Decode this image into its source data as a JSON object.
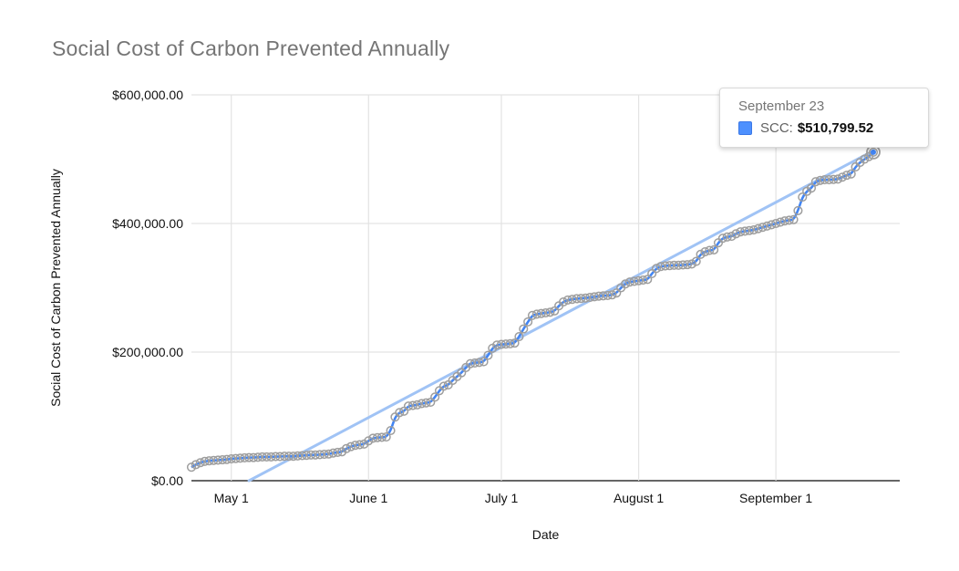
{
  "tooltip": {
    "date": "September 23",
    "series_label": "SCC:",
    "value": "$510,799.52",
    "swatch_color": "#4d90fe"
  },
  "colors": {
    "title": "#757575",
    "series_line": "#4285f4",
    "marker_stroke": "#9e9e9e",
    "trendline": "#a0c3f5",
    "gridline": "#e3e3e3",
    "axis_line": "#333333",
    "tick_text": "#111111"
  },
  "chart_data": {
    "type": "line",
    "title": "Social Cost of Carbon Prevented Annually",
    "xlabel": "Date",
    "ylabel": "Social Cost of Carbon Prevented Annually",
    "ylim": [
      0,
      600000
    ],
    "grid": true,
    "legend_position": "none",
    "start_date": "April 22",
    "end_date": "September 23",
    "y_ticks": [
      {
        "label": "$0.00",
        "value": 0
      },
      {
        "label": "$200,000.00",
        "value": 200000
      },
      {
        "label": "$400,000.00",
        "value": 400000
      },
      {
        "label": "$600,000.00",
        "value": 600000
      }
    ],
    "x_ticks": [
      {
        "label": "May 1",
        "day_index": 9
      },
      {
        "label": "June 1",
        "day_index": 40
      },
      {
        "label": "July 1",
        "day_index": 70
      },
      {
        "label": "August 1",
        "day_index": 101
      },
      {
        "label": "September 1",
        "day_index": 132
      }
    ],
    "series": [
      {
        "name": "SCC",
        "marker": "circle",
        "color": "#4285f4",
        "values": [
          21000,
          25000,
          28000,
          30000,
          31000,
          31500,
          32000,
          32500,
          33000,
          34000,
          34500,
          35000,
          35500,
          36000,
          36000,
          36500,
          37000,
          37000,
          37000,
          37500,
          37500,
          38000,
          38000,
          38000,
          38500,
          39000,
          39500,
          40000,
          40000,
          40500,
          41000,
          41500,
          43000,
          44000,
          45000,
          50000,
          53000,
          55000,
          56000,
          57000,
          62000,
          66000,
          67000,
          67500,
          68000,
          78000,
          99000,
          106000,
          108000,
          116000,
          117000,
          118000,
          120000,
          121000,
          122000,
          130000,
          140000,
          147000,
          149000,
          156000,
          162000,
          168000,
          176000,
          182000,
          183000,
          184000,
          185000,
          195000,
          206000,
          211000,
          212000,
          212500,
          213000,
          214000,
          224000,
          236000,
          247000,
          257000,
          259000,
          260000,
          261000,
          262000,
          264000,
          272000,
          278000,
          281000,
          282000,
          283000,
          283500,
          284000,
          285000,
          286000,
          287000,
          287500,
          288000,
          289000,
          292000,
          300000,
          306000,
          309000,
          310000,
          311000,
          312000,
          313000,
          322000,
          330000,
          333000,
          334000,
          334500,
          335000,
          335000,
          335500,
          336000,
          337000,
          341000,
          352000,
          356000,
          358000,
          359000,
          370000,
          377000,
          379000,
          380000,
          384000,
          387000,
          388000,
          389000,
          390000,
          392000,
          394000,
          396000,
          398000,
          400000,
          402000,
          404000,
          405000,
          406000,
          420000,
          441000,
          450000,
          455000,
          465000,
          467000,
          468000,
          468000,
          468500,
          469000,
          472000,
          475000,
          477000,
          488000,
          495000,
          500000,
          504000,
          510799.52
        ]
      }
    ],
    "trendline": {
      "type": "linear",
      "color": "#a0c3f5",
      "start_day_index": 13,
      "start_value": 0,
      "end_day_index": 154,
      "end_value": 513000
    },
    "highlighted_point": {
      "day_index": 154,
      "date": "September 23",
      "value": 510799.52
    }
  }
}
